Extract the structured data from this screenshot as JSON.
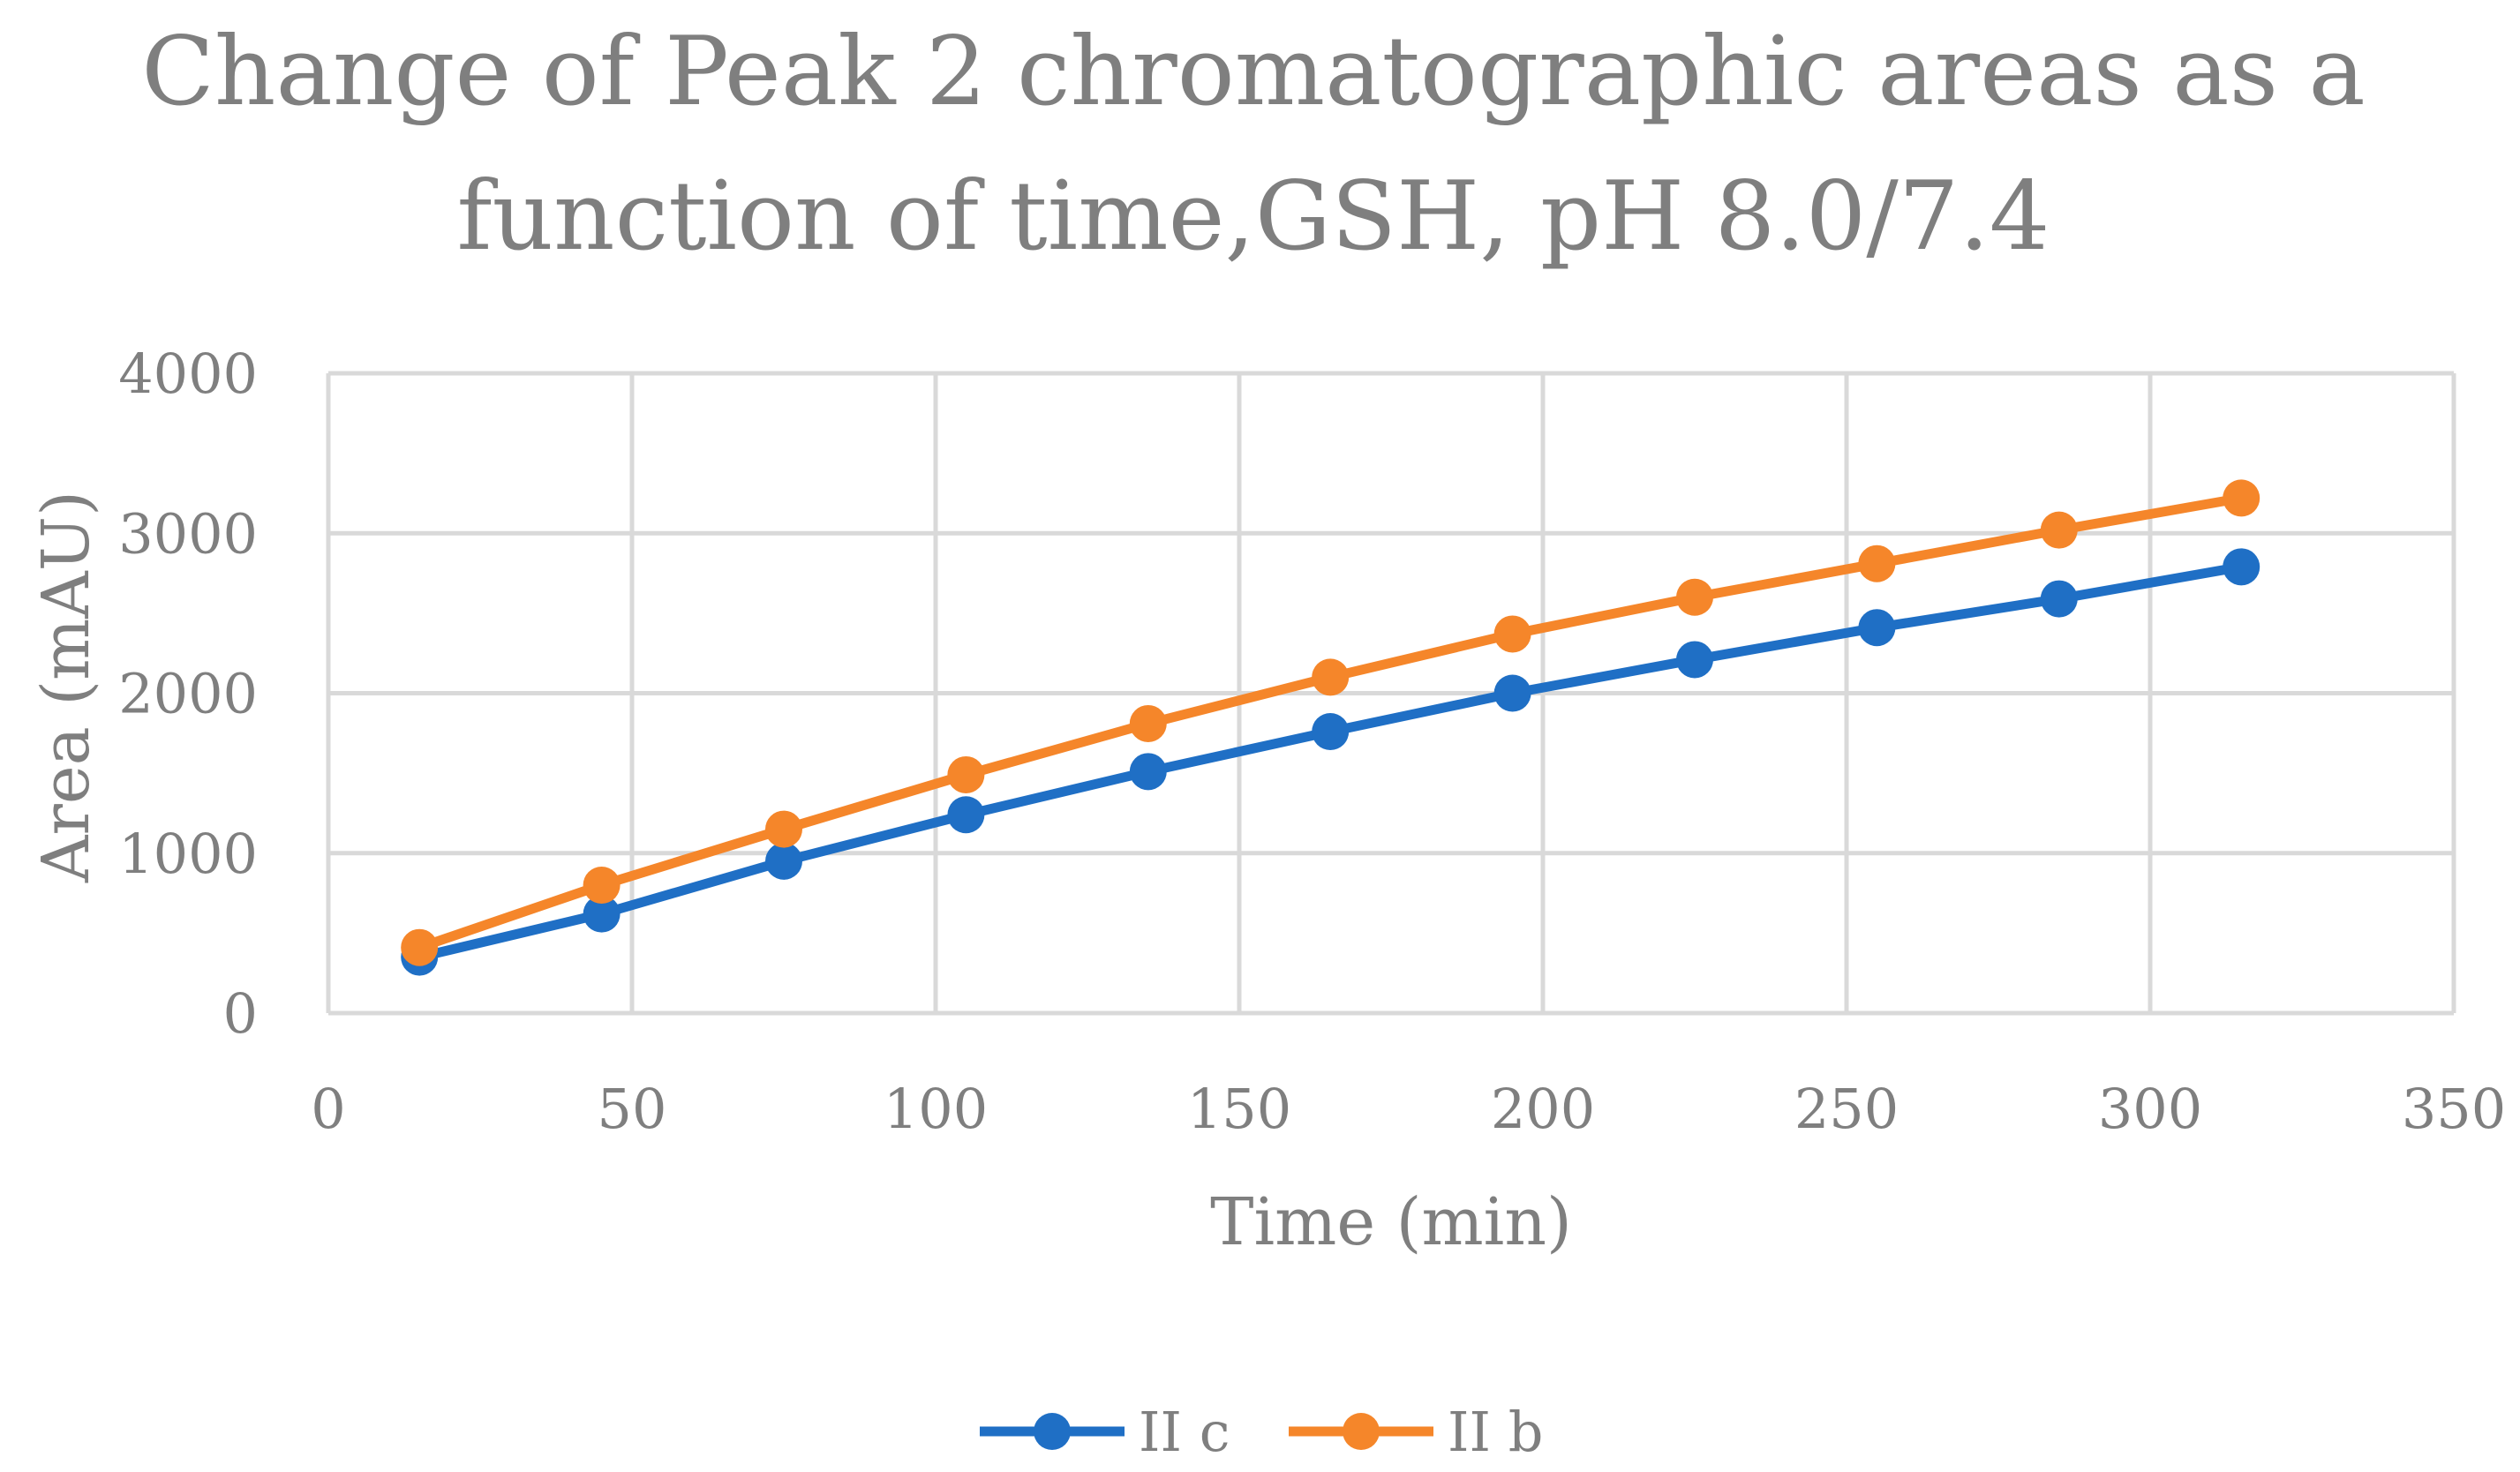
{
  "chart_data": {
    "type": "line",
    "title_lines": [
      "Change of Peak 2 chromatographic areas as a",
      "function of time,GSH, pH 8.0/7.4"
    ],
    "xlabel": "Time (min)",
    "ylabel": "Area (mAU)",
    "xlim": [
      0,
      350
    ],
    "ylim": [
      0,
      4000
    ],
    "xticks": [
      0,
      50,
      100,
      150,
      200,
      250,
      300,
      350
    ],
    "yticks": [
      0,
      1000,
      2000,
      3000,
      4000
    ],
    "grid": true,
    "legend_position": "bottom",
    "x": [
      15,
      45,
      75,
      105,
      135,
      165,
      195,
      225,
      255,
      285,
      315
    ],
    "series": [
      {
        "name": "II c",
        "color": "#1f6fc5",
        "values": [
          350,
          620,
          950,
          1240,
          1510,
          1760,
          2000,
          2210,
          2410,
          2590,
          2790
        ]
      },
      {
        "name": "II b",
        "color": "#f5862a",
        "values": [
          410,
          800,
          1150,
          1490,
          1810,
          2100,
          2370,
          2600,
          2810,
          3020,
          3220
        ]
      }
    ]
  }
}
